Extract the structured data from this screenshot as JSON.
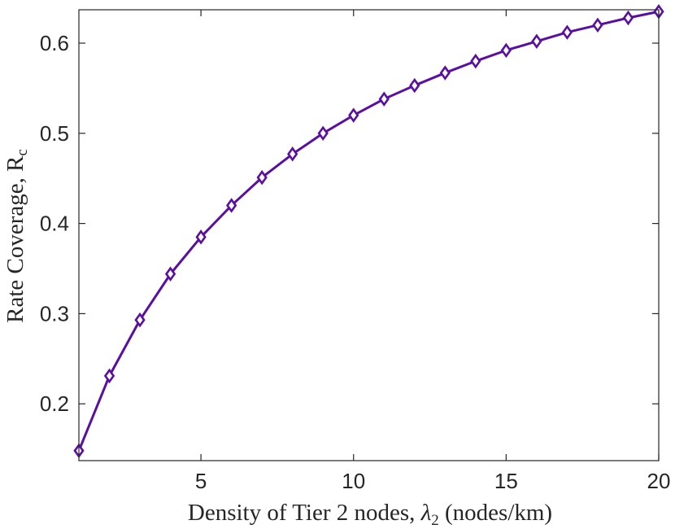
{
  "chart_data": {
    "type": "line",
    "xlabel": {
      "prefix": "Density of Tier 2 nodes, ",
      "symbol": "λ",
      "subscript": "2",
      "suffix": " (nodes/km)"
    },
    "ylabel": {
      "prefix": "Rate Coverage, R",
      "subscript": "c"
    },
    "xlim": [
      1,
      20
    ],
    "ylim": [
      0.137,
      0.637
    ],
    "xticks": [
      5,
      10,
      15,
      20
    ],
    "yticks": [
      0.2,
      0.3,
      0.4,
      0.5,
      0.6
    ],
    "xtick_labels": [
      "5",
      "10",
      "15",
      "20"
    ],
    "ytick_labels": [
      "0.2",
      "0.3",
      "0.4",
      "0.5",
      "0.6"
    ],
    "grid": false,
    "legend": "none",
    "series": [
      {
        "color": "#5a0fa0",
        "marker": "diamond",
        "x": [
          1,
          2,
          3,
          4,
          5,
          6,
          7,
          8,
          9,
          10,
          11,
          12,
          13,
          14,
          15,
          16,
          17,
          18,
          19,
          20
        ],
        "y": [
          0.148,
          0.231,
          0.293,
          0.344,
          0.385,
          0.42,
          0.451,
          0.477,
          0.5,
          0.52,
          0.538,
          0.553,
          0.567,
          0.58,
          0.592,
          0.602,
          0.612,
          0.62,
          0.628,
          0.635
        ]
      }
    ]
  }
}
